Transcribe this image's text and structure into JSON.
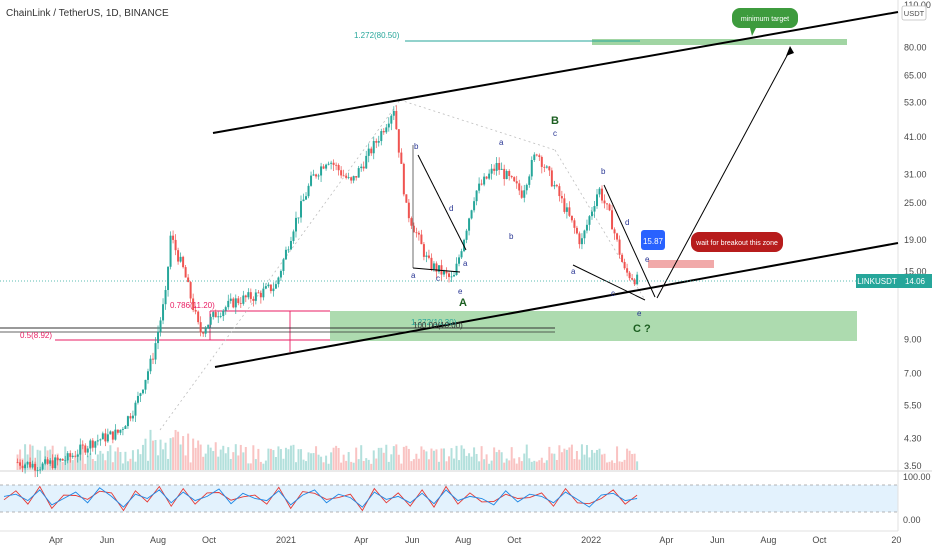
{
  "header": {
    "title": "ChainLink / TetherUS, 1D, BINANCE"
  },
  "price_axis": {
    "unit": "USDT",
    "current_symbol": "LINKUSDT",
    "current_price": "14.06"
  },
  "annotations": {
    "target_label": "minimum target",
    "breakout_label": "wait for breakout this zone",
    "price_tag": "15.87",
    "fib_top": "1.272(80.50)",
    "fib_786": "0.786(11.20)",
    "fib_05": "0.5(8.92)",
    "fib_100": "100.00(10.00)",
    "fib_1272_low": "1.272(10.30)",
    "wave_A": "A",
    "wave_B": "B",
    "wave_C": "C ?",
    "sub_a": "a",
    "sub_b": "b",
    "sub_c": "c",
    "sub_d": "d",
    "sub_e": "e"
  },
  "colors": {
    "up": "#26a69a",
    "down": "#ef5350",
    "target_box": "#3d9b3d",
    "breakout_box": "#b71c1c",
    "price_tag": "#2962ff",
    "fib_pink": "#e91e63",
    "fib_teal": "#26a69a",
    "green_zone": "#81c784",
    "red_zone": "#ef9a9a",
    "rsi_band": "#e3f2fd"
  },
  "chart_data": [
    {
      "type": "line",
      "title": "ChainLink / TetherUS, 1D, BINANCE",
      "xlabel": "",
      "ylabel": "USDT",
      "scale": "log",
      "x_ticks": [
        "Apr",
        "Jun",
        "Aug",
        "Oct",
        "2021",
        "Apr",
        "Jun",
        "Aug",
        "Oct",
        "2022",
        "Apr",
        "Jun",
        "Aug",
        "Oct",
        "20"
      ],
      "y_ticks": [
        "110.00",
        "80.00",
        "65.00",
        "53.00",
        "41.00",
        "31.00",
        "25.00",
        "19.00",
        "15.00",
        "9.00",
        "7.00",
        "5.50",
        "4.30",
        "3.50"
      ],
      "ylim": [
        3.5,
        110
      ],
      "series": [
        {
          "x": [
            "2020-02-15",
            "2020-03-15",
            "2020-04-15",
            "2020-05-15",
            "2020-06-15",
            "2020-07-05",
            "2020-07-25",
            "2020-08-10",
            "2020-08-16",
            "2020-09-01",
            "2020-09-20",
            "2020-10-10",
            "2020-11-01",
            "2020-11-25",
            "2020-12-20",
            "2021-01-10",
            "2021-02-01",
            "2021-02-20",
            "2021-03-20",
            "2021-04-20",
            "2021-05-10",
            "2021-05-25",
            "2021-06-20",
            "2021-07-20",
            "2021-08-15",
            "2021-09-10",
            "2021-10-10",
            "2021-10-28",
            "2021-11-25",
            "2021-12-20",
            "2022-01-10",
            "2022-01-25",
            "2022-02-10",
            "2022-02-25"
          ],
          "values": [
            3.6,
            3.5,
            3.7,
            4.2,
            4.5,
            5.5,
            7.8,
            12.5,
            19.5,
            15.0,
            9.5,
            11.0,
            12.0,
            12.5,
            13.5,
            21.0,
            30.0,
            35.0,
            29.0,
            40.0,
            51.0,
            24.0,
            16.0,
            14.0,
            27.0,
            33.0,
            27.0,
            37.0,
            26.0,
            18.5,
            28.0,
            22.0,
            15.0,
            14.06
          ]
        }
      ]
    },
    {
      "type": "line",
      "title": "",
      "ylim": [
        0,
        100
      ],
      "y_ticks": [
        "100.00",
        "0.00"
      ],
      "band": [
        20,
        80
      ],
      "series": [
        {
          "values": [
            55,
            60,
            45,
            70,
            35,
            50,
            65,
            40,
            75,
            55,
            30,
            60,
            50,
            70,
            40,
            65,
            45,
            55,
            72,
            38,
            62,
            50,
            45,
            68,
            35,
            58,
            70,
            40,
            60,
            52,
            30,
            65,
            48,
            55,
            40,
            62,
            38,
            70,
            45,
            55,
            50,
            35,
            68,
            42,
            60,
            55,
            40,
            65,
            48,
            30,
            58,
            62,
            45,
            50
          ]
        }
      ]
    }
  ]
}
